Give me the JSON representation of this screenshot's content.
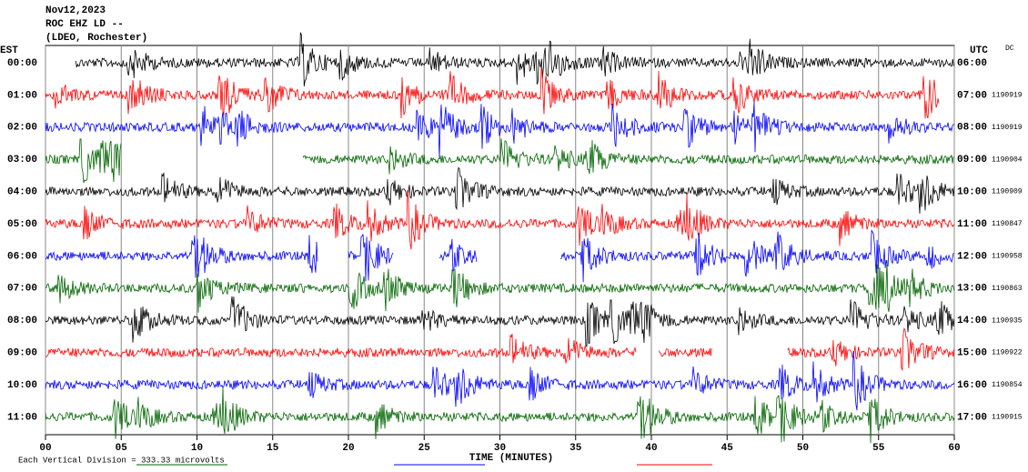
{
  "chart_data": {
    "type": "helicorder",
    "title_lines": [
      "Nov12,2023",
      "ROC EHZ LD --",
      "(LDEO, Rochester)"
    ],
    "left_header": "EST",
    "right_header": "UTC",
    "right_note": "DC",
    "xlabel": "TIME (MINUTES)",
    "footer": "Each Vertical Division =  333.33 microvolts",
    "xlim": [
      0,
      60
    ],
    "xticks": [
      {
        "value": 0,
        "label": "00"
      },
      {
        "value": 5,
        "label": "05"
      },
      10,
      15,
      20,
      25,
      30,
      35,
      40,
      45,
      50,
      55,
      60
    ],
    "grid": true,
    "rows": [
      {
        "est": "00:00",
        "utc": "06:00",
        "color": "#000000",
        "segments": [
          [
            2,
            60
          ]
        ]
      },
      {
        "est": "01:00",
        "utc": "07:00",
        "code": "1190919",
        "color": "#ff0000",
        "segments": [
          [
            0,
            59
          ]
        ]
      },
      {
        "est": "02:00",
        "utc": "08:00",
        "code": "1190919",
        "color": "#0000ff",
        "segments": [
          [
            0,
            60
          ]
        ]
      },
      {
        "est": "03:00",
        "utc": "09:00",
        "code": "1190904",
        "color": "#006400",
        "segments": [
          [
            0,
            5
          ],
          [
            17,
            60
          ]
        ]
      },
      {
        "est": "04:00",
        "utc": "10:00",
        "code": "1190909",
        "color": "#000000",
        "segments": [
          [
            0,
            60
          ]
        ]
      },
      {
        "est": "05:00",
        "utc": "11:00",
        "code": "1190847",
        "color": "#ff0000",
        "segments": [
          [
            0,
            60
          ]
        ]
      },
      {
        "est": "06:00",
        "utc": "12:00",
        "code": "1190958",
        "color": "#0000ff",
        "segments": [
          [
            0,
            18
          ],
          [
            20,
            23
          ],
          [
            26,
            28.5
          ],
          [
            34,
            60
          ]
        ]
      },
      {
        "est": "07:00",
        "utc": "13:00",
        "code": "1190863",
        "color": "#006400",
        "segments": [
          [
            0,
            60
          ]
        ]
      },
      {
        "est": "08:00",
        "utc": "14:00",
        "code": "1190935",
        "color": "#000000",
        "segments": [
          [
            0,
            60
          ]
        ]
      },
      {
        "est": "09:00",
        "utc": "15:00",
        "code": "1190922",
        "color": "#ff0000",
        "segments": [
          [
            0,
            39
          ],
          [
            40.5,
            44
          ],
          [
            49,
            60
          ]
        ]
      },
      {
        "est": "10:00",
        "utc": "16:00",
        "code": "1190854",
        "color": "#0000ff",
        "segments": [
          [
            0,
            60
          ]
        ]
      },
      {
        "est": "11:00",
        "utc": "17:00",
        "code": "1190915",
        "color": "#006400",
        "segments": [
          [
            0,
            60
          ]
        ]
      }
    ]
  }
}
